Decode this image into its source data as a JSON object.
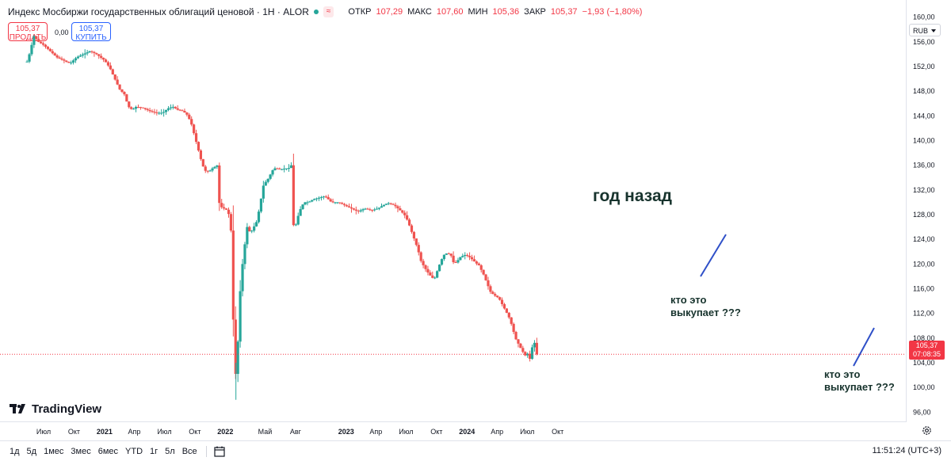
{
  "header": {
    "title": "Индекс Мосбиржи государственных облигаций ценовой · 1Н · ALOR",
    "eq_badge": "≈",
    "ohlc": [
      {
        "k": "ОТКР",
        "v": "107,29"
      },
      {
        "k": "МАКС",
        "v": "107,60"
      },
      {
        "k": "МИН",
        "v": "105,36"
      },
      {
        "k": "ЗАКР",
        "v": "105,37"
      },
      {
        "k": "",
        "v": "−1,93 (−1,80%)"
      }
    ]
  },
  "trade": {
    "sell_price": "105,37",
    "sell_label": "ПРОДАТЬ",
    "buy_price": "105,37",
    "buy_label": "КУПИТЬ",
    "spread": "0,00"
  },
  "currency": "RUB",
  "last_price": {
    "price": "105,37",
    "countdown": "07:08:35"
  },
  "logo_text": "TradingView",
  "annotations": {
    "year_ago": "год назад",
    "who1": [
      "кто это",
      "выкупает ???"
    ],
    "who2": [
      "кто это",
      "выкупает ???"
    ]
  },
  "toolbar": {
    "timeframes": [
      "1д",
      "5д",
      "1мес",
      "3мес",
      "6мес",
      "YTD",
      "1г",
      "5л",
      "Все"
    ],
    "clock": "11:51:24 (UTC+3)"
  },
  "colors": {
    "up": "#26a69a",
    "down": "#ef5350",
    "annot_line": "#2f50c8",
    "price_label": "#f23645"
  },
  "chart_data": {
    "type": "candlestick",
    "title": "Индекс Мосбиржи государственных облигаций ценовой",
    "y_axis": {
      "ticks": [
        "160,00",
        "156,00",
        "152,00",
        "148,00",
        "144,00",
        "140,00",
        "136,00",
        "132,00",
        "128,00",
        "124,00",
        "120,00",
        "116,00",
        "112,00",
        "108,00",
        "104,00",
        "100,00",
        "96,00"
      ],
      "range": [
        94.5,
        161.5
      ]
    },
    "x_axis": {
      "ticks": [
        {
          "label": "Июл",
          "d": 0
        },
        {
          "label": "Окт",
          "d": 92
        },
        {
          "label": "2021",
          "d": 184,
          "bold": true
        },
        {
          "label": "Апр",
          "d": 274
        },
        {
          "label": "Июл",
          "d": 365
        },
        {
          "label": "Окт",
          "d": 457
        },
        {
          "label": "2022",
          "d": 549,
          "bold": true
        },
        {
          "label": "Май",
          "d": 669
        },
        {
          "label": "Авг",
          "d": 761
        },
        {
          "label": "2023",
          "d": 914,
          "bold": true
        },
        {
          "label": "Апр",
          "d": 1004
        },
        {
          "label": "Июл",
          "d": 1095
        },
        {
          "label": "Окт",
          "d": 1187
        },
        {
          "label": "2024",
          "d": 1279,
          "bold": true
        },
        {
          "label": "Апр",
          "d": 1370
        },
        {
          "label": "Июл",
          "d": 1461
        },
        {
          "label": "Окт",
          "d": 1553
        }
      ],
      "d0_label": "Июл 2020"
    },
    "close_anchors": [
      [
        -50,
        152.8
      ],
      [
        -40,
        154.5
      ],
      [
        -30,
        157
      ],
      [
        -15,
        156
      ],
      [
        0,
        155.5
      ],
      [
        10,
        155
      ],
      [
        20,
        154.5
      ],
      [
        40,
        153.5
      ],
      [
        60,
        153
      ],
      [
        80,
        152.5
      ],
      [
        100,
        153.5
      ],
      [
        120,
        154
      ],
      [
        140,
        154.5
      ],
      [
        160,
        154
      ],
      [
        184,
        153
      ],
      [
        200,
        151.8
      ],
      [
        215,
        150
      ],
      [
        230,
        148.3
      ],
      [
        244,
        147.5
      ],
      [
        256,
        145.5
      ],
      [
        268,
        145
      ],
      [
        280,
        145.5
      ],
      [
        300,
        145.3
      ],
      [
        320,
        144.8
      ],
      [
        340,
        144.5
      ],
      [
        360,
        144.5
      ],
      [
        375,
        145.2
      ],
      [
        390,
        145.5
      ],
      [
        405,
        145
      ],
      [
        420,
        144.8
      ],
      [
        432,
        144.3
      ],
      [
        445,
        143
      ],
      [
        460,
        140
      ],
      [
        470,
        138
      ],
      [
        480,
        136
      ],
      [
        490,
        135
      ],
      [
        500,
        135
      ],
      [
        510,
        135.5
      ],
      [
        525,
        136
      ],
      [
        530,
        130
      ],
      [
        540,
        129
      ],
      [
        550,
        129
      ],
      [
        560,
        128
      ],
      [
        567,
        125
      ],
      [
        573,
        111
      ],
      [
        578,
        101
      ],
      [
        583,
        104
      ],
      [
        590,
        110
      ],
      [
        595,
        117
      ],
      [
        605,
        122
      ],
      [
        615,
        126
      ],
      [
        625,
        125
      ],
      [
        635,
        126
      ],
      [
        645,
        127
      ],
      [
        655,
        130
      ],
      [
        665,
        133
      ],
      [
        675,
        133.5
      ],
      [
        685,
        134.5
      ],
      [
        695,
        135.5
      ],
      [
        705,
        135.5
      ],
      [
        715,
        135.3
      ],
      [
        730,
        135.5
      ],
      [
        740,
        135.5
      ],
      [
        748,
        136
      ],
      [
        752,
        126.5
      ],
      [
        760,
        126
      ],
      [
        770,
        128
      ],
      [
        780,
        129.5
      ],
      [
        790,
        130
      ],
      [
        800,
        130
      ],
      [
        815,
        130.5
      ],
      [
        830,
        130.7
      ],
      [
        850,
        131
      ],
      [
        870,
        130
      ],
      [
        890,
        130
      ],
      [
        910,
        129.5
      ],
      [
        930,
        129
      ],
      [
        950,
        128.5
      ],
      [
        970,
        129
      ],
      [
        990,
        128.7
      ],
      [
        1010,
        129
      ],
      [
        1025,
        129.5
      ],
      [
        1040,
        129.9
      ],
      [
        1060,
        129.5
      ],
      [
        1075,
        128.8
      ],
      [
        1090,
        128
      ],
      [
        1100,
        127
      ],
      [
        1110,
        125.5
      ],
      [
        1120,
        124
      ],
      [
        1130,
        122.5
      ],
      [
        1140,
        120.5
      ],
      [
        1150,
        119.5
      ],
      [
        1160,
        118.7
      ],
      [
        1170,
        118
      ],
      [
        1180,
        117.5
      ],
      [
        1190,
        119
      ],
      [
        1200,
        120.5
      ],
      [
        1210,
        121.5
      ],
      [
        1220,
        121.8
      ],
      [
        1230,
        121.5
      ],
      [
        1240,
        120
      ],
      [
        1250,
        120.5
      ],
      [
        1260,
        121.2
      ],
      [
        1275,
        121.5
      ],
      [
        1290,
        121
      ],
      [
        1305,
        120.2
      ],
      [
        1315,
        119.8
      ],
      [
        1330,
        118.2
      ],
      [
        1340,
        116.8
      ],
      [
        1350,
        115.5
      ],
      [
        1360,
        115
      ],
      [
        1375,
        114.5
      ],
      [
        1385,
        113.5
      ],
      [
        1395,
        112.5
      ],
      [
        1405,
        111.5
      ],
      [
        1415,
        110
      ],
      [
        1425,
        108
      ],
      [
        1435,
        107
      ],
      [
        1445,
        106
      ],
      [
        1455,
        105.2
      ],
      [
        1463,
        105.5
      ],
      [
        1470,
        104.5
      ],
      [
        1476,
        106.5
      ],
      [
        1482,
        107.2
      ],
      [
        1486,
        107.3
      ],
      [
        1490,
        105.37
      ]
    ]
  }
}
